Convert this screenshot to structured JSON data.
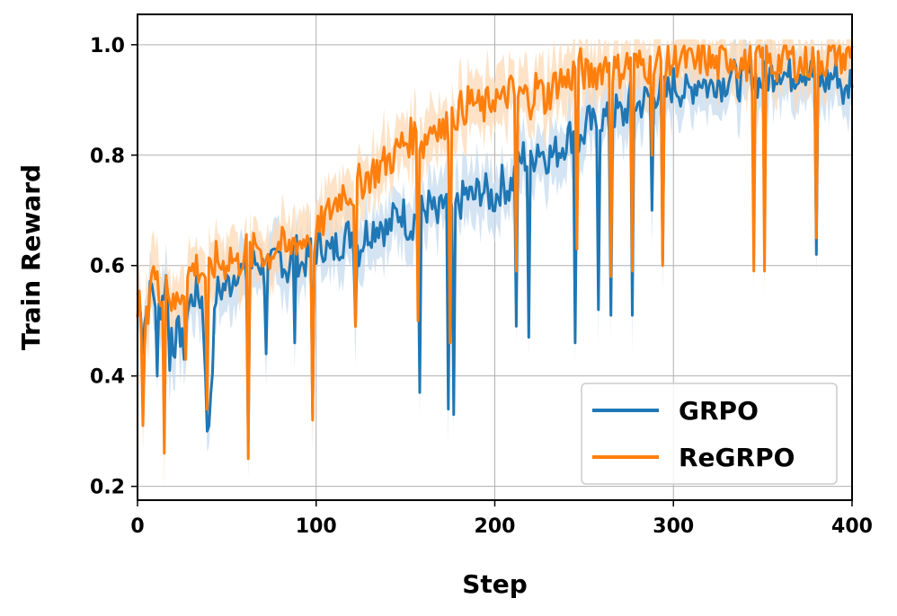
{
  "chart_data": {
    "type": "line",
    "xlabel": "Step",
    "ylabel": "Train Reward",
    "xlim": [
      0,
      400
    ],
    "ylim": [
      0.175,
      1.055
    ],
    "xticks": [
      0,
      100,
      200,
      300,
      400
    ],
    "yticks": [
      0.2,
      0.4,
      0.6,
      0.8,
      1.0
    ],
    "xtick_labels": [
      "0",
      "100",
      "200",
      "300",
      "400"
    ],
    "ytick_labels": [
      "0.2",
      "0.4",
      "0.6",
      "0.8",
      "1.0"
    ],
    "grid": true,
    "legend_position": "lower-right",
    "series": [
      {
        "name": "GRPO",
        "color": "#1f77b4",
        "band_color": "#c6dbef",
        "x": [
          0,
          4,
          8,
          12,
          16,
          20,
          24,
          28,
          32,
          36,
          40,
          44,
          48,
          52,
          56,
          60,
          64,
          68,
          72,
          76,
          80,
          84,
          88,
          92,
          96,
          100,
          104,
          108,
          112,
          116,
          120,
          124,
          128,
          132,
          136,
          140,
          144,
          148,
          152,
          156,
          160,
          164,
          168,
          172,
          176,
          180,
          184,
          188,
          192,
          196,
          200,
          204,
          208,
          212,
          216,
          220,
          224,
          228,
          232,
          236,
          240,
          244,
          248,
          252,
          256,
          260,
          264,
          268,
          272,
          276,
          280,
          284,
          288,
          292,
          296,
          300,
          304,
          308,
          312,
          316,
          320,
          324,
          328,
          332,
          336,
          340,
          344,
          348,
          352,
          356,
          360,
          364,
          368,
          372,
          376,
          380,
          384,
          388,
          392,
          396,
          400
        ],
        "values": [
          0.55,
          0.5,
          0.56,
          0.52,
          0.57,
          0.46,
          0.48,
          0.52,
          0.55,
          0.54,
          0.32,
          0.55,
          0.56,
          0.57,
          0.6,
          0.58,
          0.6,
          0.61,
          0.58,
          0.6,
          0.62,
          0.59,
          0.63,
          0.6,
          0.62,
          0.63,
          0.64,
          0.62,
          0.64,
          0.65,
          0.66,
          0.63,
          0.66,
          0.67,
          0.68,
          0.66,
          0.69,
          0.7,
          0.67,
          0.69,
          0.7,
          0.71,
          0.68,
          0.72,
          0.7,
          0.71,
          0.73,
          0.72,
          0.74,
          0.73,
          0.72,
          0.75,
          0.74,
          0.77,
          0.8,
          0.78,
          0.82,
          0.8,
          0.8,
          0.81,
          0.83,
          0.84,
          0.82,
          0.86,
          0.85,
          0.87,
          0.86,
          0.88,
          0.87,
          0.9,
          0.89,
          0.9,
          0.91,
          0.92,
          0.91,
          0.93,
          0.92,
          0.91,
          0.93,
          0.94,
          0.92,
          0.94,
          0.93,
          0.95,
          0.93,
          0.94,
          0.95,
          0.93,
          0.94,
          0.95,
          0.96,
          0.94,
          0.95,
          0.96,
          0.95,
          0.94,
          0.93,
          0.94,
          0.95,
          0.9,
          0.95
        ],
        "dips": [
          [
            3,
            0.44
          ],
          [
            11,
            0.4
          ],
          [
            18,
            0.41
          ],
          [
            26,
            0.43
          ],
          [
            39,
            0.3
          ],
          [
            62,
            0.28
          ],
          [
            72,
            0.44
          ],
          [
            88,
            0.46
          ],
          [
            98,
            0.33
          ],
          [
            122,
            0.49
          ],
          [
            158,
            0.37
          ],
          [
            174,
            0.34
          ],
          [
            177,
            0.33
          ],
          [
            212,
            0.49
          ],
          [
            219,
            0.47
          ],
          [
            245,
            0.46
          ],
          [
            258,
            0.52
          ],
          [
            265,
            0.51
          ],
          [
            277,
            0.51
          ],
          [
            288,
            0.7
          ],
          [
            294,
            0.61
          ],
          [
            380,
            0.62
          ]
        ]
      },
      {
        "name": "ReGRPO",
        "color": "#ff7f0e",
        "band_color": "#fdd9b5",
        "x": [
          0,
          4,
          8,
          12,
          16,
          20,
          24,
          28,
          32,
          36,
          40,
          44,
          48,
          52,
          56,
          60,
          64,
          68,
          72,
          76,
          80,
          84,
          88,
          92,
          96,
          100,
          104,
          108,
          112,
          116,
          120,
          124,
          128,
          132,
          136,
          140,
          144,
          148,
          152,
          156,
          160,
          164,
          168,
          172,
          176,
          180,
          184,
          188,
          192,
          196,
          200,
          204,
          208,
          212,
          216,
          220,
          224,
          228,
          232,
          236,
          240,
          244,
          248,
          252,
          256,
          260,
          264,
          268,
          272,
          276,
          280,
          284,
          288,
          292,
          296,
          300,
          304,
          308,
          312,
          316,
          320,
          324,
          328,
          332,
          336,
          340,
          344,
          348,
          352,
          356,
          360,
          364,
          368,
          372,
          376,
          380,
          384,
          388,
          392,
          396,
          400
        ],
        "values": [
          0.54,
          0.46,
          0.6,
          0.55,
          0.58,
          0.52,
          0.55,
          0.58,
          0.6,
          0.59,
          0.58,
          0.61,
          0.6,
          0.62,
          0.6,
          0.63,
          0.62,
          0.64,
          0.61,
          0.63,
          0.64,
          0.62,
          0.65,
          0.64,
          0.66,
          0.65,
          0.68,
          0.7,
          0.72,
          0.74,
          0.73,
          0.75,
          0.76,
          0.77,
          0.78,
          0.79,
          0.8,
          0.82,
          0.83,
          0.84,
          0.82,
          0.85,
          0.86,
          0.84,
          0.87,
          0.88,
          0.89,
          0.9,
          0.88,
          0.89,
          0.91,
          0.89,
          0.92,
          0.9,
          0.91,
          0.9,
          0.93,
          0.9,
          0.92,
          0.94,
          0.93,
          0.95,
          0.96,
          0.94,
          0.95,
          0.96,
          0.97,
          0.95,
          0.96,
          0.97,
          0.96,
          0.97,
          0.95,
          0.97,
          0.96,
          0.97,
          0.98,
          0.97,
          0.96,
          0.98,
          0.97,
          0.96,
          0.97,
          0.98,
          0.97,
          0.96,
          0.97,
          0.98,
          0.97,
          0.96,
          0.97,
          0.98,
          0.97,
          0.96,
          0.97,
          0.98,
          0.97,
          0.98,
          0.99,
          0.97,
          0.99
        ],
        "dips": [
          [
            3,
            0.31
          ],
          [
            15,
            0.26
          ],
          [
            27,
            0.43
          ],
          [
            39,
            0.34
          ],
          [
            62,
            0.25
          ],
          [
            98,
            0.32
          ],
          [
            122,
            0.49
          ],
          [
            157,
            0.5
          ],
          [
            175,
            0.46
          ],
          [
            212,
            0.59
          ],
          [
            246,
            0.63
          ],
          [
            265,
            0.58
          ],
          [
            277,
            0.59
          ],
          [
            288,
            0.8
          ],
          [
            294,
            0.6
          ],
          [
            345,
            0.59
          ],
          [
            351,
            0.59
          ],
          [
            380,
            0.65
          ]
        ]
      }
    ]
  }
}
